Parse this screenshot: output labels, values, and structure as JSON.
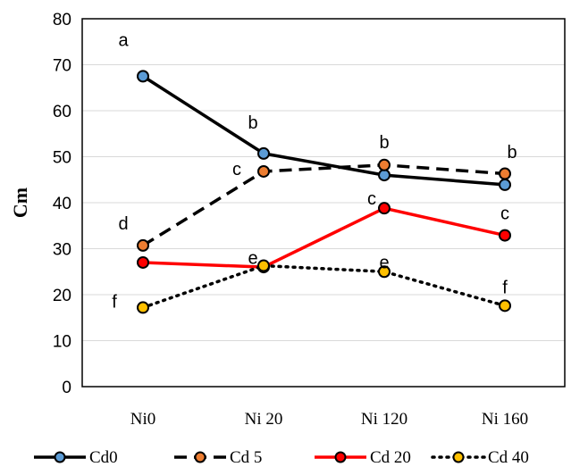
{
  "chart_data": {
    "type": "line",
    "categories": [
      "Ni0",
      "Ni 20",
      "Ni 120",
      "Ni 160"
    ],
    "ylabel": "Cm",
    "xlabel": "",
    "ylim": [
      0,
      80
    ],
    "yticks": [
      0,
      10,
      20,
      30,
      40,
      50,
      60,
      70,
      80
    ],
    "grid": "horizontal",
    "legend": "bottom",
    "series": [
      {
        "name": "Cd0",
        "values": [
          67.5,
          50.7,
          46,
          43.9
        ],
        "labels": [
          "a",
          "b",
          "b",
          "b"
        ],
        "line_color": "#000000",
        "dash": "solid",
        "marker_fill": "#5b9bd5"
      },
      {
        "name": "Cd 5",
        "values": [
          30.7,
          46.8,
          48.2,
          46.3
        ],
        "labels": [
          "d",
          "c",
          "",
          ""
        ],
        "line_color": "#000000",
        "dash": "dashed",
        "marker_fill": "#ed7d31"
      },
      {
        "name": "Cd 20",
        "values": [
          27,
          26,
          38.8,
          32.9
        ],
        "labels": [
          "",
          "",
          "c",
          "c"
        ],
        "line_color": "#ff0000",
        "dash": "solid",
        "marker_fill": "#ff0000"
      },
      {
        "name": "Cd 40",
        "values": [
          17.2,
          26.3,
          25,
          17.6
        ],
        "labels": [
          "f",
          "e",
          "e",
          "f"
        ],
        "line_color": "#000000",
        "dash": "dotted",
        "marker_fill": "#ffc000"
      }
    ]
  }
}
